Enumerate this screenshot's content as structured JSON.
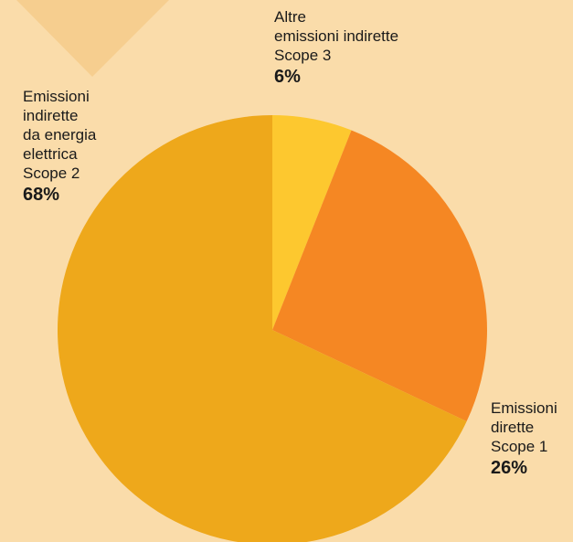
{
  "chart_data": {
    "type": "pie",
    "title": "",
    "start_angle_deg": 0,
    "direction": "clockwise",
    "slices": [
      {
        "label_lines": [
          "Altre",
          "emissioni indirette",
          "Scope 3"
        ],
        "value": 6,
        "value_label": "6%",
        "color": "#fdc82f"
      },
      {
        "label_lines": [
          "Emissioni",
          "dirette",
          "Scope 1"
        ],
        "value": 26,
        "value_label": "26%",
        "color": "#f58723"
      },
      {
        "label_lines": [
          "Emissioni",
          "indirette",
          "da energia",
          "elettrica",
          "Scope 2"
        ],
        "value": 68,
        "value_label": "68%",
        "color": "#eea81b"
      }
    ]
  },
  "colors": {
    "background": "#fadcaa",
    "decoration": "#f6ce8f"
  }
}
